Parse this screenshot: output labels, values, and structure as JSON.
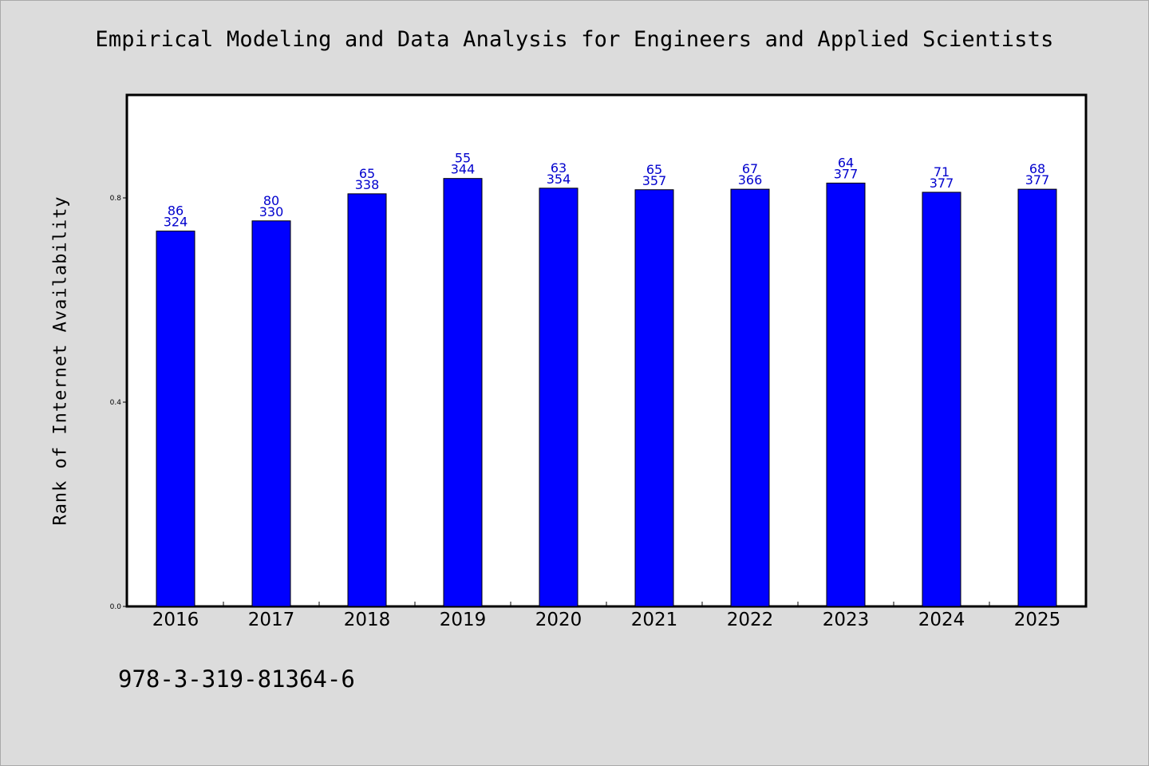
{
  "chart_data": {
    "type": "bar",
    "title": "Empirical Modeling and Data Analysis for Engineers and Applied Scientists",
    "xlabel": "",
    "ylabel": "Rank of Internet Availability",
    "ylim": [
      0,
      1.0
    ],
    "yticks": [
      "0.0",
      "0.4",
      "0.8"
    ],
    "categories": [
      "2016",
      "2017",
      "2018",
      "2019",
      "2020",
      "2021",
      "2022",
      "2023",
      "2024",
      "2025"
    ],
    "values": [
      0.735,
      0.755,
      0.808,
      0.838,
      0.819,
      0.816,
      0.817,
      0.829,
      0.811,
      0.817
    ],
    "labels_top": [
      "86",
      "80",
      "65",
      "55",
      "63",
      "65",
      "67",
      "64",
      "71",
      "68"
    ],
    "labels_bottom": [
      "324",
      "330",
      "338",
      "344",
      "354",
      "357",
      "366",
      "377",
      "377",
      "377"
    ],
    "grid": false,
    "legend": "none",
    "bar_color": "#0000ff",
    "label_color": "#0000cd"
  },
  "footer": {
    "isbn": "978-3-319-81364-6"
  }
}
